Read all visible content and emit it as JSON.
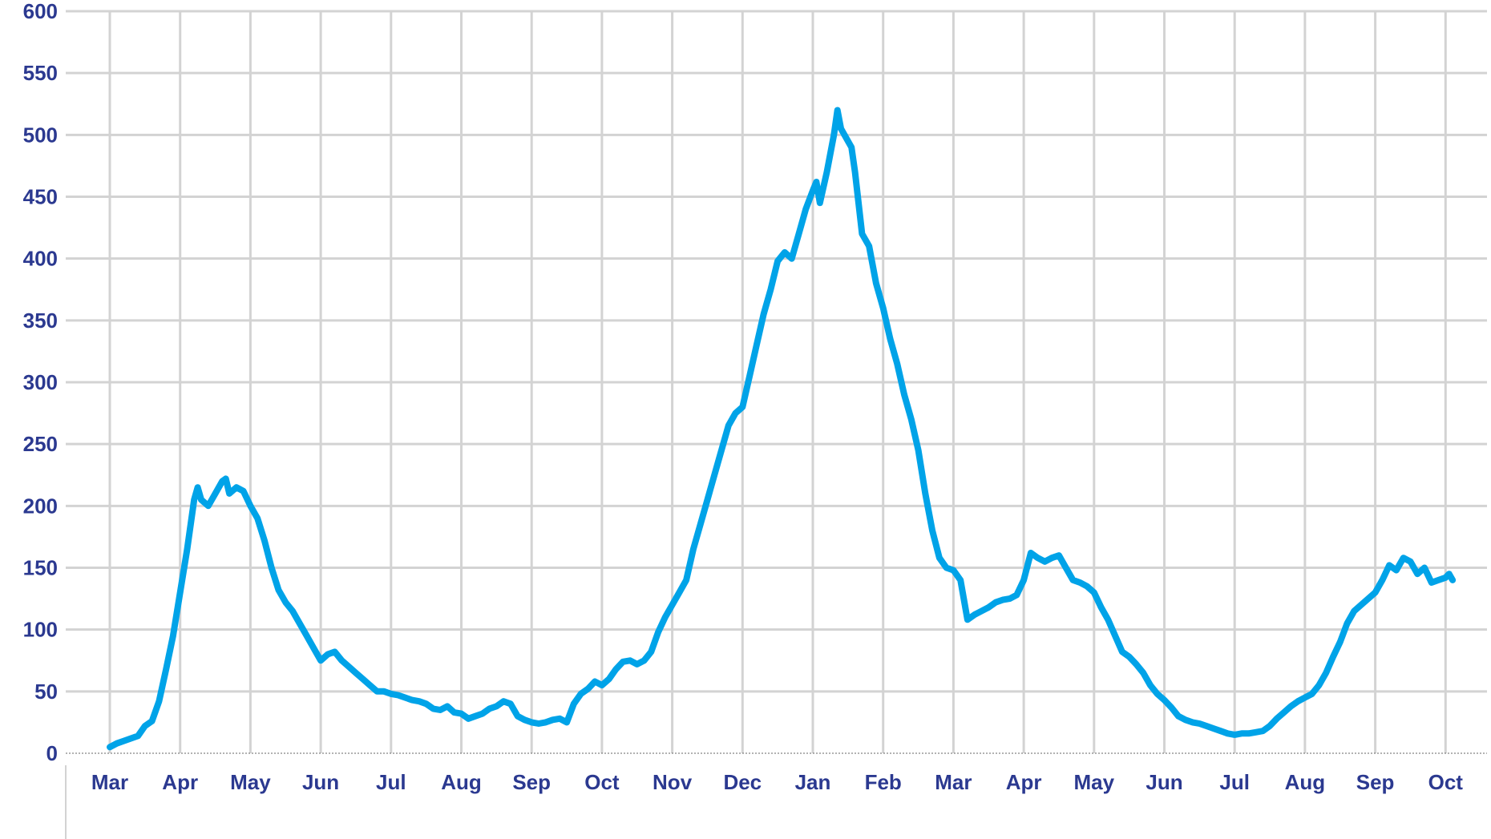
{
  "chart_data": {
    "type": "line",
    "title": "",
    "xlabel": "",
    "ylabel": "",
    "ylim": [
      0,
      600
    ],
    "yticks": [
      "0",
      "50",
      "100",
      "150",
      "200",
      "250",
      "300",
      "350",
      "400",
      "450",
      "500",
      "550",
      "600"
    ],
    "xticks": [
      "Mar",
      "Apr",
      "May",
      "Jun",
      "Jul",
      "Aug",
      "Sep",
      "Oct",
      "Nov",
      "Dec",
      "Jan",
      "Feb",
      "Mar",
      "Apr",
      "May",
      "Jun",
      "Jul",
      "Aug",
      "Sep",
      "Oct"
    ],
    "grid": true,
    "legend": "none",
    "x_unit": "months since first Mar tick",
    "series": [
      {
        "color": "#00a3e8",
        "points": [
          [
            0.0,
            5
          ],
          [
            0.1,
            8
          ],
          [
            0.2,
            10
          ],
          [
            0.3,
            12
          ],
          [
            0.4,
            14
          ],
          [
            0.5,
            22
          ],
          [
            0.6,
            26
          ],
          [
            0.7,
            42
          ],
          [
            0.8,
            68
          ],
          [
            0.9,
            95
          ],
          [
            1.0,
            130
          ],
          [
            1.1,
            165
          ],
          [
            1.2,
            205
          ],
          [
            1.25,
            215
          ],
          [
            1.3,
            205
          ],
          [
            1.4,
            200
          ],
          [
            1.5,
            210
          ],
          [
            1.6,
            220
          ],
          [
            1.65,
            222
          ],
          [
            1.7,
            210
          ],
          [
            1.8,
            215
          ],
          [
            1.9,
            212
          ],
          [
            2.0,
            200
          ],
          [
            2.1,
            190
          ],
          [
            2.2,
            172
          ],
          [
            2.3,
            150
          ],
          [
            2.4,
            132
          ],
          [
            2.5,
            122
          ],
          [
            2.6,
            115
          ],
          [
            2.7,
            105
          ],
          [
            2.8,
            95
          ],
          [
            2.9,
            85
          ],
          [
            3.0,
            75
          ],
          [
            3.1,
            80
          ],
          [
            3.2,
            82
          ],
          [
            3.3,
            75
          ],
          [
            3.4,
            70
          ],
          [
            3.5,
            65
          ],
          [
            3.6,
            60
          ],
          [
            3.7,
            55
          ],
          [
            3.8,
            50
          ],
          [
            3.9,
            50
          ],
          [
            4.0,
            48
          ],
          [
            4.1,
            47
          ],
          [
            4.2,
            45
          ],
          [
            4.3,
            43
          ],
          [
            4.4,
            42
          ],
          [
            4.5,
            40
          ],
          [
            4.6,
            36
          ],
          [
            4.7,
            35
          ],
          [
            4.8,
            38
          ],
          [
            4.9,
            33
          ],
          [
            5.0,
            32
          ],
          [
            5.1,
            28
          ],
          [
            5.2,
            30
          ],
          [
            5.3,
            32
          ],
          [
            5.4,
            36
          ],
          [
            5.5,
            38
          ],
          [
            5.6,
            42
          ],
          [
            5.7,
            40
          ],
          [
            5.8,
            30
          ],
          [
            5.9,
            27
          ],
          [
            6.0,
            25
          ],
          [
            6.1,
            24
          ],
          [
            6.2,
            25
          ],
          [
            6.3,
            27
          ],
          [
            6.4,
            28
          ],
          [
            6.5,
            25
          ],
          [
            6.6,
            40
          ],
          [
            6.7,
            48
          ],
          [
            6.8,
            52
          ],
          [
            6.9,
            58
          ],
          [
            7.0,
            55
          ],
          [
            7.1,
            60
          ],
          [
            7.2,
            68
          ],
          [
            7.3,
            74
          ],
          [
            7.4,
            75
          ],
          [
            7.5,
            72
          ],
          [
            7.6,
            75
          ],
          [
            7.7,
            82
          ],
          [
            7.8,
            98
          ],
          [
            7.9,
            110
          ],
          [
            8.0,
            120
          ],
          [
            8.1,
            130
          ],
          [
            8.2,
            140
          ],
          [
            8.3,
            165
          ],
          [
            8.4,
            185
          ],
          [
            8.5,
            205
          ],
          [
            8.6,
            225
          ],
          [
            8.7,
            245
          ],
          [
            8.8,
            265
          ],
          [
            8.9,
            275
          ],
          [
            9.0,
            280
          ],
          [
            9.1,
            305
          ],
          [
            9.2,
            330
          ],
          [
            9.3,
            355
          ],
          [
            9.4,
            375
          ],
          [
            9.5,
            398
          ],
          [
            9.6,
            405
          ],
          [
            9.7,
            400
          ],
          [
            9.8,
            420
          ],
          [
            9.9,
            440
          ],
          [
            10.0,
            455
          ],
          [
            10.05,
            462
          ],
          [
            10.1,
            445
          ],
          [
            10.2,
            470
          ],
          [
            10.3,
            500
          ],
          [
            10.35,
            520
          ],
          [
            10.4,
            505
          ],
          [
            10.5,
            495
          ],
          [
            10.55,
            490
          ],
          [
            10.6,
            470
          ],
          [
            10.7,
            420
          ],
          [
            10.8,
            410
          ],
          [
            10.9,
            380
          ],
          [
            11.0,
            360
          ],
          [
            11.1,
            335
          ],
          [
            11.2,
            315
          ],
          [
            11.3,
            290
          ],
          [
            11.4,
            270
          ],
          [
            11.5,
            245
          ],
          [
            11.6,
            210
          ],
          [
            11.7,
            180
          ],
          [
            11.8,
            158
          ],
          [
            11.9,
            150
          ],
          [
            12.0,
            148
          ],
          [
            12.1,
            140
          ],
          [
            12.2,
            108
          ],
          [
            12.3,
            112
          ],
          [
            12.4,
            115
          ],
          [
            12.5,
            118
          ],
          [
            12.6,
            122
          ],
          [
            12.7,
            124
          ],
          [
            12.8,
            125
          ],
          [
            12.9,
            128
          ],
          [
            13.0,
            140
          ],
          [
            13.1,
            162
          ],
          [
            13.2,
            158
          ],
          [
            13.3,
            155
          ],
          [
            13.4,
            158
          ],
          [
            13.5,
            160
          ],
          [
            13.6,
            150
          ],
          [
            13.7,
            140
          ],
          [
            13.8,
            138
          ],
          [
            13.9,
            135
          ],
          [
            14.0,
            130
          ],
          [
            14.1,
            118
          ],
          [
            14.2,
            108
          ],
          [
            14.3,
            95
          ],
          [
            14.4,
            82
          ],
          [
            14.5,
            78
          ],
          [
            14.6,
            72
          ],
          [
            14.7,
            65
          ],
          [
            14.8,
            55
          ],
          [
            14.9,
            48
          ],
          [
            15.0,
            43
          ],
          [
            15.1,
            37
          ],
          [
            15.2,
            30
          ],
          [
            15.3,
            27
          ],
          [
            15.4,
            25
          ],
          [
            15.5,
            24
          ],
          [
            15.6,
            22
          ],
          [
            15.7,
            20
          ],
          [
            15.8,
            18
          ],
          [
            15.9,
            16
          ],
          [
            16.0,
            15
          ],
          [
            16.1,
            16
          ],
          [
            16.2,
            16
          ],
          [
            16.3,
            17
          ],
          [
            16.4,
            18
          ],
          [
            16.5,
            22
          ],
          [
            16.6,
            28
          ],
          [
            16.7,
            33
          ],
          [
            16.8,
            38
          ],
          [
            16.9,
            42
          ],
          [
            17.0,
            45
          ],
          [
            17.1,
            48
          ],
          [
            17.2,
            55
          ],
          [
            17.3,
            65
          ],
          [
            17.4,
            78
          ],
          [
            17.5,
            90
          ],
          [
            17.6,
            105
          ],
          [
            17.7,
            115
          ],
          [
            17.8,
            120
          ],
          [
            17.9,
            125
          ],
          [
            18.0,
            130
          ],
          [
            18.1,
            140
          ],
          [
            18.2,
            152
          ],
          [
            18.3,
            148
          ],
          [
            18.4,
            158
          ],
          [
            18.5,
            155
          ],
          [
            18.6,
            145
          ],
          [
            18.7,
            150
          ],
          [
            18.8,
            138
          ],
          [
            18.9,
            140
          ],
          [
            19.0,
            142
          ],
          [
            19.05,
            145
          ],
          [
            19.1,
            140
          ]
        ]
      }
    ]
  }
}
